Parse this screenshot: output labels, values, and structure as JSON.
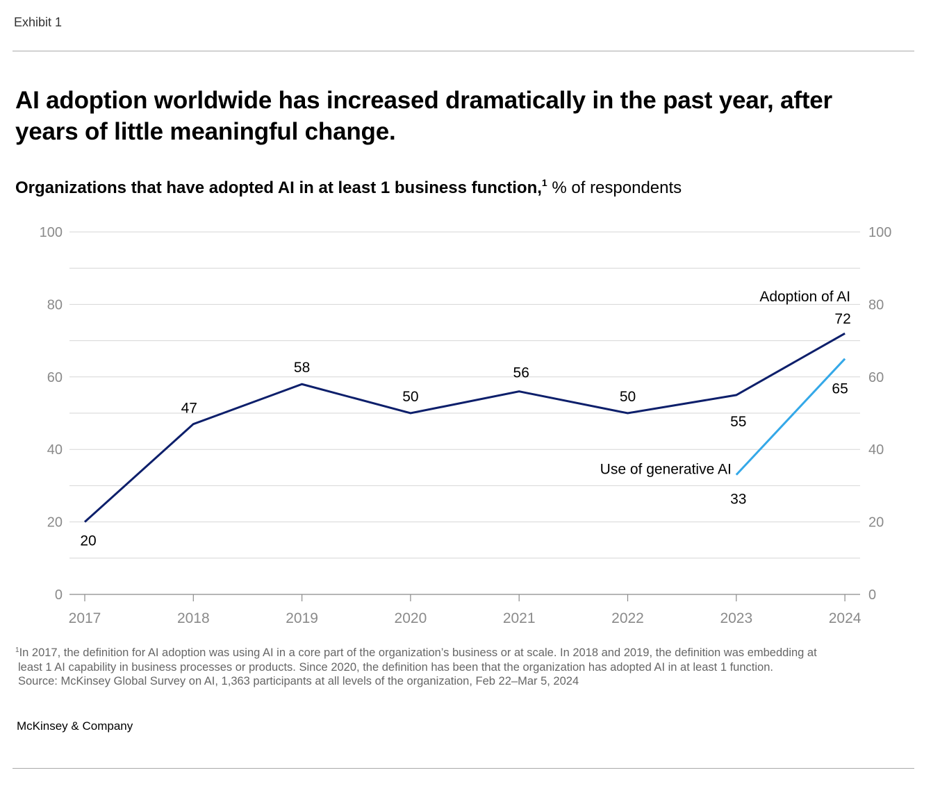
{
  "exhibit_label": "Exhibit 1",
  "headline": "AI adoption worldwide has increased dramatically in the past year, after years of little meaningful change.",
  "chart_title": {
    "main": "Organizations that have adopted AI in at least 1 business function,",
    "footnote_ref": "1",
    "unit": " % of respondents"
  },
  "chart_data": {
    "type": "line",
    "title": "Organizations that have adopted AI in at least 1 business function, % of respondents",
    "x": [
      "2017",
      "2018",
      "2019",
      "2020",
      "2021",
      "2022",
      "2023",
      "2024"
    ],
    "ylim": [
      0,
      100
    ],
    "y_ticks": [
      "0",
      "20",
      "40",
      "60",
      "80",
      "100"
    ],
    "y_tick_values": [
      0,
      20,
      40,
      60,
      80,
      100
    ],
    "y_axis_sides": "left-and-right",
    "grid": true,
    "series": [
      {
        "name": "Adoption of AI",
        "color": "#0d1f6b",
        "x": [
          "2017",
          "2018",
          "2019",
          "2020",
          "2021",
          "2022",
          "2023",
          "2024"
        ],
        "values": [
          20,
          47,
          58,
          50,
          56,
          50,
          55,
          72
        ],
        "labels": [
          "20",
          "47",
          "58",
          "50",
          "56",
          "50",
          "55",
          "72"
        ]
      },
      {
        "name": "Use of generative AI",
        "color": "#34a8e8",
        "x": [
          "2023",
          "2024"
        ],
        "values": [
          33,
          65
        ],
        "labels": [
          "33",
          "65"
        ]
      }
    ]
  },
  "footnote": {
    "marker": "1",
    "line1": "In 2017, the definition for AI adoption was using AI in a core part of the organization’s business or at scale. In 2018 and 2019, the definition was embedding at",
    "line2": "least 1 AI capability in business processes or products. Since 2020, the definition has been that the organization has adopted AI in at least 1 function.",
    "source": "Source: McKinsey Global Survey on AI, 1,363 participants at all levels of the organization, Feb 22–Mar 5, 2024"
  },
  "brand": "McKinsey & Company"
}
